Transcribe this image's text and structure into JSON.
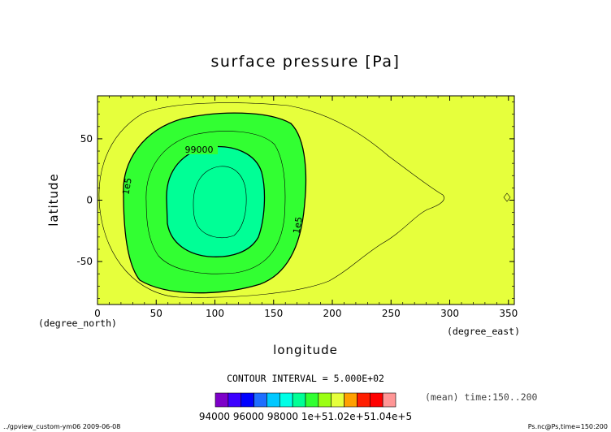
{
  "chart_data": {
    "type": "contour",
    "title": "surface pressure [Pa]",
    "xlabel": "longitude",
    "ylabel": "latitude",
    "x_unit": "(degree_east)",
    "y_unit": "(degree_north)",
    "xlim": [
      0,
      355
    ],
    "ylim": [
      -85,
      85
    ],
    "x_ticks": [
      "0",
      "50",
      "100",
      "150",
      "200",
      "250",
      "300",
      "350"
    ],
    "y_ticks": [
      "-50",
      "0",
      "50"
    ],
    "contour_labels": [
      "99000",
      "1e5",
      "1e5"
    ],
    "contour_interval_text": "CONTOUR INTERVAL = 5.000E+02",
    "subtitle": "(mean) time:150..200",
    "colorbar": {
      "colors": [
        "#7d00c8",
        "#3c00ff",
        "#0000ff",
        "#1e6eff",
        "#00c8ff",
        "#00ffe6",
        "#00ff96",
        "#32ff32",
        "#9bff14",
        "#e6ff3c",
        "#ffa000",
        "#ff1e00",
        "#ff0000",
        "#ff9696"
      ],
      "tick_labels": [
        "94000",
        "96000",
        "98000",
        "1e+5",
        "1.02e+5",
        "1.04e+5"
      ],
      "tick_label_text": "94000 96000 98000  1e+51.02e+51.04e+5"
    },
    "fill_colors": {
      "outer": "#e6ff3c",
      "mid": "#32ff32",
      "inner": "#00ff96"
    }
  },
  "footer": {
    "left": "../gpview_custom-ym06  2009-06-08",
    "right": "Ps.nc@Ps,time=150:200"
  }
}
